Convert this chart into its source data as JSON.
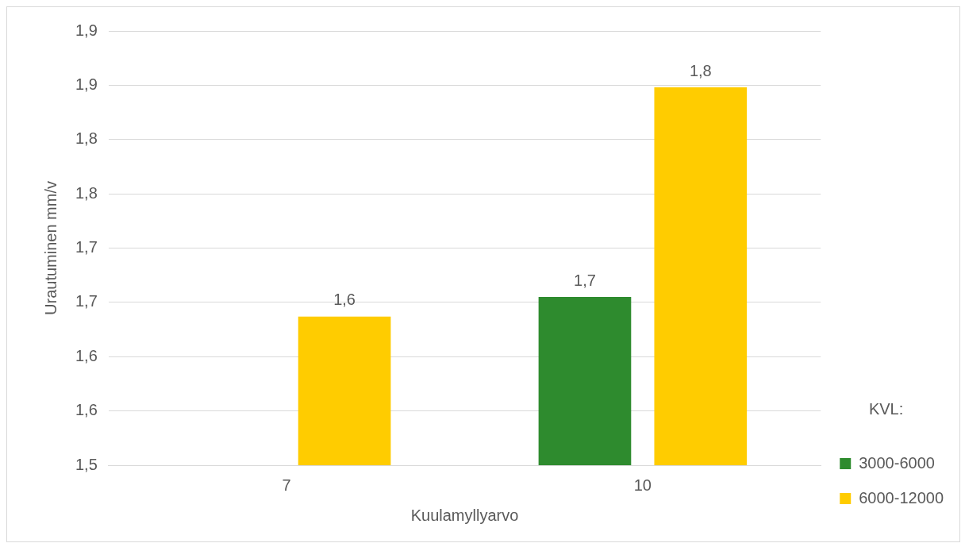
{
  "chart_data": {
    "type": "bar",
    "xlabel": "Kuulamyllyarvo",
    "ylabel": "Urautuminen mm/v",
    "legend_title": "KVL:",
    "legend": "right",
    "grid": "y",
    "categories": [
      "7",
      "10"
    ],
    "series": [
      {
        "name": "3000-6000",
        "color": "#2e8b2e",
        "values": [
          null,
          1.655
        ],
        "value_labels": [
          null,
          "1,7"
        ]
      },
      {
        "name": "6000-12000",
        "color": "#ffcc00",
        "values": [
          1.637,
          1.848
        ],
        "value_labels": [
          "1,6",
          "1,8"
        ]
      }
    ],
    "ylim": [
      1.5,
      1.9
    ],
    "yticks": [
      {
        "value": 1.5,
        "label": "1,5"
      },
      {
        "value": 1.55,
        "label": "1,6"
      },
      {
        "value": 1.6,
        "label": "1,6"
      },
      {
        "value": 1.65,
        "label": "1,7"
      },
      {
        "value": 1.7,
        "label": "1,7"
      },
      {
        "value": 1.75,
        "label": "1,8"
      },
      {
        "value": 1.8,
        "label": "1,8"
      },
      {
        "value": 1.85,
        "label": "1,9"
      },
      {
        "value": 1.9,
        "label": "1,9"
      }
    ]
  }
}
